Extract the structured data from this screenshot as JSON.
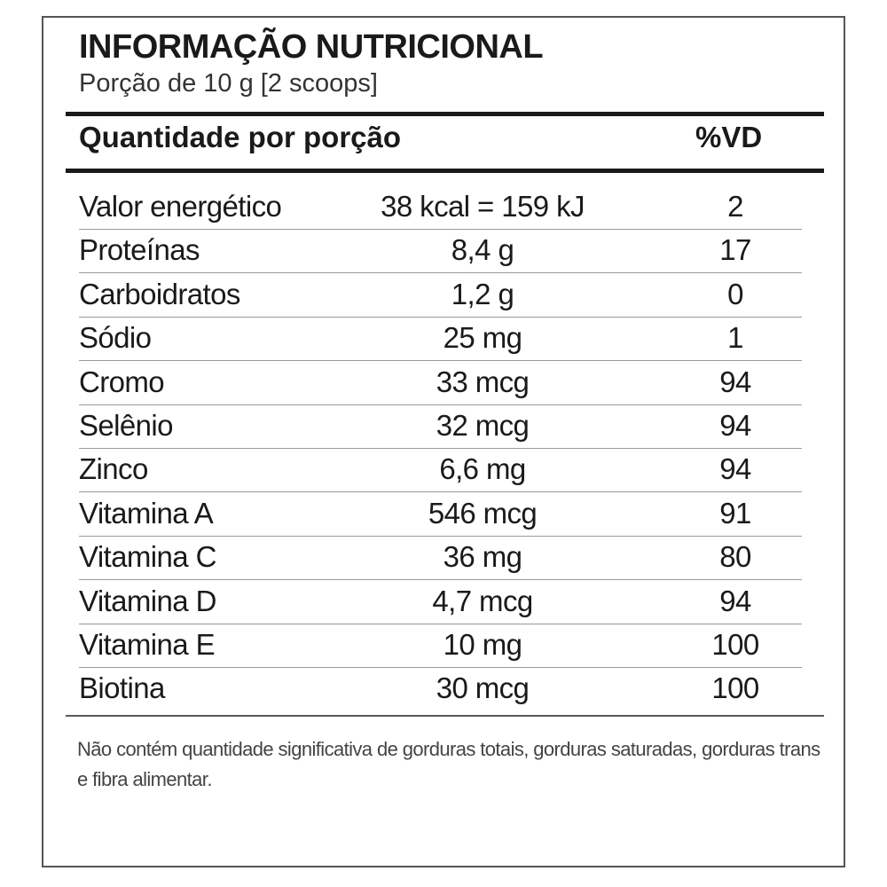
{
  "label": {
    "title": "INFORMAÇÃO NUTRICIONAL",
    "serving": "Porção de 10 g  [2 scoops]",
    "header": {
      "amount_label": "Quantidade por porção",
      "dv_label": "%VD"
    },
    "rows": [
      {
        "nutrient": "Valor energético",
        "amount": "38 kcal = 159 kJ",
        "dv": "2"
      },
      {
        "nutrient": "Proteínas",
        "amount": "8,4 g",
        "dv": "17"
      },
      {
        "nutrient": "Carboidratos",
        "amount": "1,2 g",
        "dv": "0"
      },
      {
        "nutrient": "Sódio",
        "amount": "25 mg",
        "dv": "1"
      },
      {
        "nutrient": "Cromo",
        "amount": "33 mcg",
        "dv": "94"
      },
      {
        "nutrient": "Selênio",
        "amount": "32 mcg",
        "dv": "94"
      },
      {
        "nutrient": "Zinco",
        "amount": "6,6 mg",
        "dv": "94"
      },
      {
        "nutrient": "Vitamina A",
        "amount": "546 mcg",
        "dv": "91"
      },
      {
        "nutrient": "Vitamina C",
        "amount": "36 mg",
        "dv": "80"
      },
      {
        "nutrient": "Vitamina D",
        "amount": "4,7 mcg",
        "dv": "94"
      },
      {
        "nutrient": "Vitamina E",
        "amount": "10 mg",
        "dv": "100"
      },
      {
        "nutrient": "Biotina",
        "amount": "30 mcg",
        "dv": "100"
      }
    ],
    "footnote": "Não contém quantidade significativa de gorduras totais, gorduras saturadas, gorduras trans e fibra alimentar."
  }
}
